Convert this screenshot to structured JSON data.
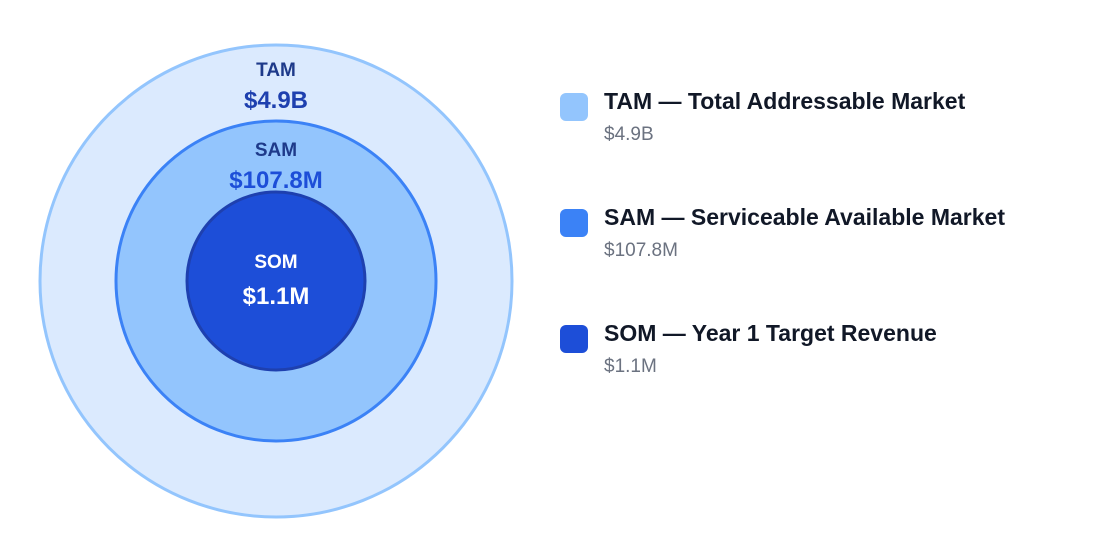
{
  "chart_data": {
    "type": "nested-circles",
    "title": "",
    "series": [
      {
        "key": "tam",
        "label": "TAM",
        "value_label": "$4.9B",
        "value": 4900000000,
        "legend": "TAM — Total Addressable Market",
        "color": "#93c5fd",
        "fill": "#dbeafe",
        "label_color": "#1e3a8a",
        "value_color": "#1e40af"
      },
      {
        "key": "sam",
        "label": "SAM",
        "value_label": "$107.8M",
        "value": 107800000,
        "legend": "SAM — Serviceable Available Market",
        "color": "#3b82f6",
        "fill": "#93c5fd",
        "label_color": "#1e3a8a",
        "value_color": "#1d4ed8"
      },
      {
        "key": "som",
        "label": "SOM",
        "value_label": "$1.1M",
        "value": 1100000,
        "legend": "SOM — Year 1 Target Revenue",
        "color": "#1e40af",
        "fill": "#1d4ed8",
        "label_color": "#ffffff",
        "value_color": "#ffffff"
      }
    ]
  }
}
